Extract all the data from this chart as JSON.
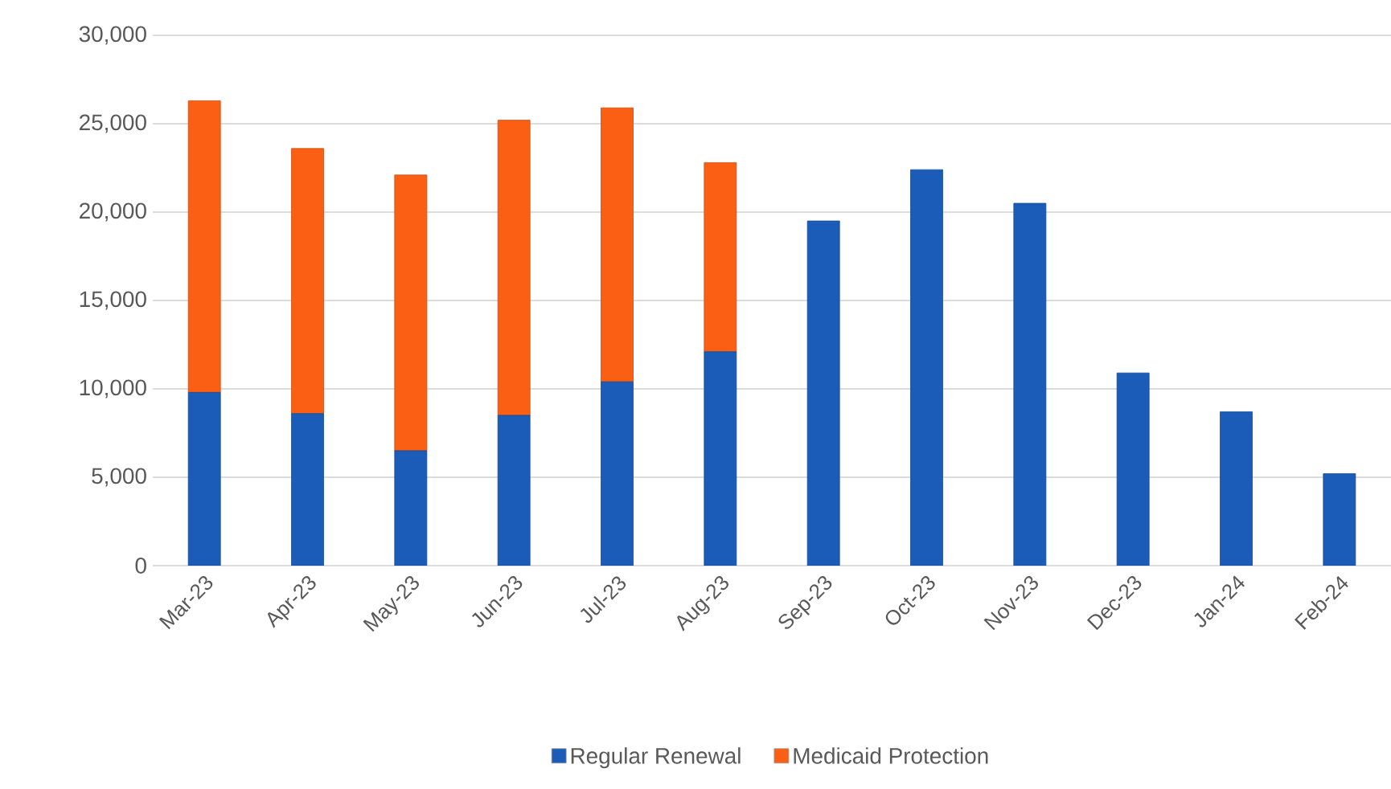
{
  "chart_data": {
    "type": "bar",
    "stacked": true,
    "categories": [
      "Mar-23",
      "Apr-23",
      "May-23",
      "Jun-23",
      "Jul-23",
      "Aug-23",
      "Sep-23",
      "Oct-23",
      "Nov-23",
      "Dec-23",
      "Jan-24",
      "Feb-24"
    ],
    "series": [
      {
        "name": "Regular Renewal",
        "color": "#1a5cb8",
        "values": [
          9800,
          8600,
          6500,
          8500,
          10400,
          12100,
          19500,
          22400,
          20500,
          10900,
          8700,
          5200
        ]
      },
      {
        "name": "Medicaid Protection",
        "color": "#fb5f14",
        "values": [
          16500,
          15000,
          15600,
          16700,
          15500,
          10700,
          null,
          null,
          null,
          null,
          null,
          null
        ]
      }
    ],
    "ylim": [
      0,
      30000
    ],
    "yticks": [
      {
        "value": 0,
        "label": "0"
      },
      {
        "value": 5000,
        "label": "5,000"
      },
      {
        "value": 10000,
        "label": "10,000"
      },
      {
        "value": 15000,
        "label": "15,000"
      },
      {
        "value": 20000,
        "label": "20,000"
      },
      {
        "value": 25000,
        "label": "25,000"
      },
      {
        "value": 30000,
        "label": "30,000"
      }
    ],
    "grid": "y",
    "legend": "bottom"
  }
}
